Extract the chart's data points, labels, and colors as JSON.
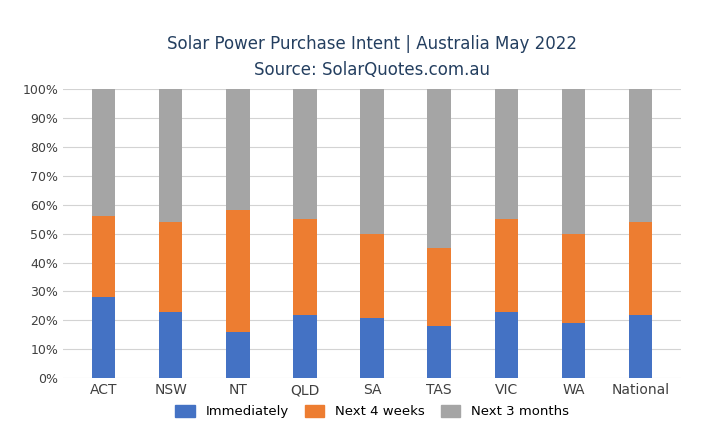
{
  "categories": [
    "ACT",
    "NSW",
    "NT",
    "QLD",
    "SA",
    "TAS",
    "VIC",
    "WA",
    "National"
  ],
  "immediately": [
    28,
    23,
    16,
    22,
    21,
    18,
    23,
    19,
    22
  ],
  "next_4_weeks": [
    28,
    31,
    42,
    33,
    29,
    27,
    32,
    31,
    32
  ],
  "next_3_months": [
    44,
    46,
    42,
    45,
    50,
    55,
    45,
    50,
    46
  ],
  "colors": {
    "immediately": "#4472C4",
    "next_4_weeks": "#ED7D31",
    "next_3_months": "#A5A5A5"
  },
  "title_line1": "Solar Power Purchase Intent | Australia May 2022",
  "title_line2": "Source: SolarQuotes.com.au",
  "title_color": "#243F60",
  "tick_color": "#404040",
  "ylabel_ticks": [
    "0%",
    "10%",
    "20%",
    "30%",
    "40%",
    "50%",
    "60%",
    "70%",
    "80%",
    "90%",
    "100%"
  ],
  "legend_labels": [
    "Immediately",
    "Next 4 weeks",
    "Next 3 months"
  ],
  "background_color": "#FFFFFF",
  "grid_color": "#D3D3D3",
  "bar_width": 0.35
}
